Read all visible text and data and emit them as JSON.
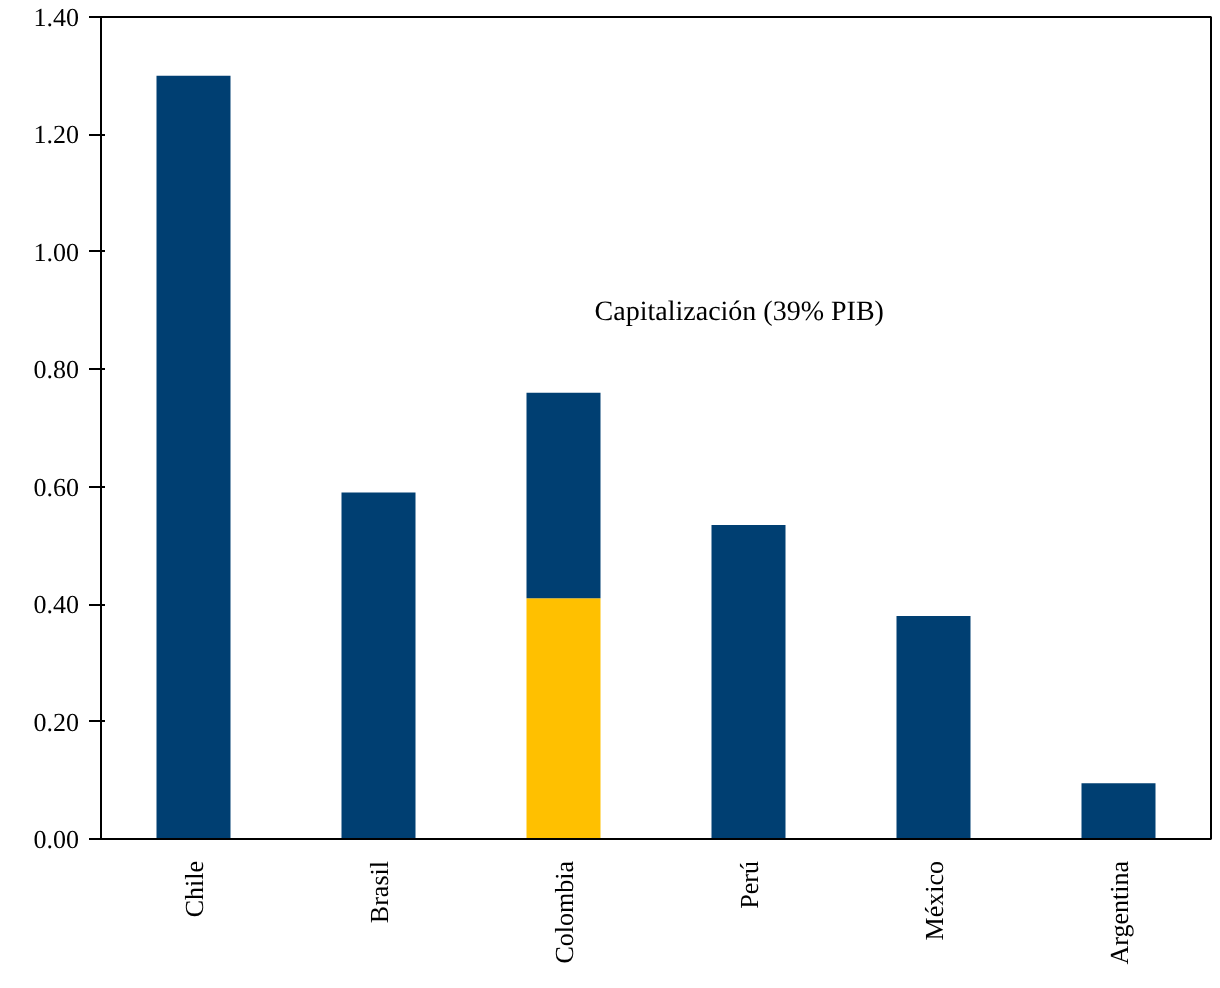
{
  "chart_data": {
    "type": "bar",
    "stacked": true,
    "categories": [
      "Chile",
      "Brasil",
      "Colombia",
      "Perú",
      "México",
      "Argentina"
    ],
    "series": [
      {
        "color": "#ffc000",
        "values": [
          null,
          null,
          0.41,
          null,
          null,
          null
        ]
      },
      {
        "color": "#003f72",
        "values": [
          1.3,
          0.59,
          0.35,
          0.535,
          0.38,
          0.095
        ]
      }
    ],
    "ylim": [
      0,
      1.4
    ],
    "yticks": [
      {
        "value": 0,
        "label": "0.00"
      },
      {
        "value": 0.2,
        "label": "0.20"
      },
      {
        "value": 0.4,
        "label": "0.40"
      },
      {
        "value": 0.6,
        "label": "0.60"
      },
      {
        "value": 0.8,
        "label": "0.80"
      },
      {
        "value": 1.0,
        "label": "1.00"
      },
      {
        "value": 1.2,
        "label": "1.20"
      },
      {
        "value": 1.4,
        "label": "1.40"
      }
    ],
    "grid": false,
    "annotations": [
      "Capitalización (39% PIB)"
    ]
  }
}
